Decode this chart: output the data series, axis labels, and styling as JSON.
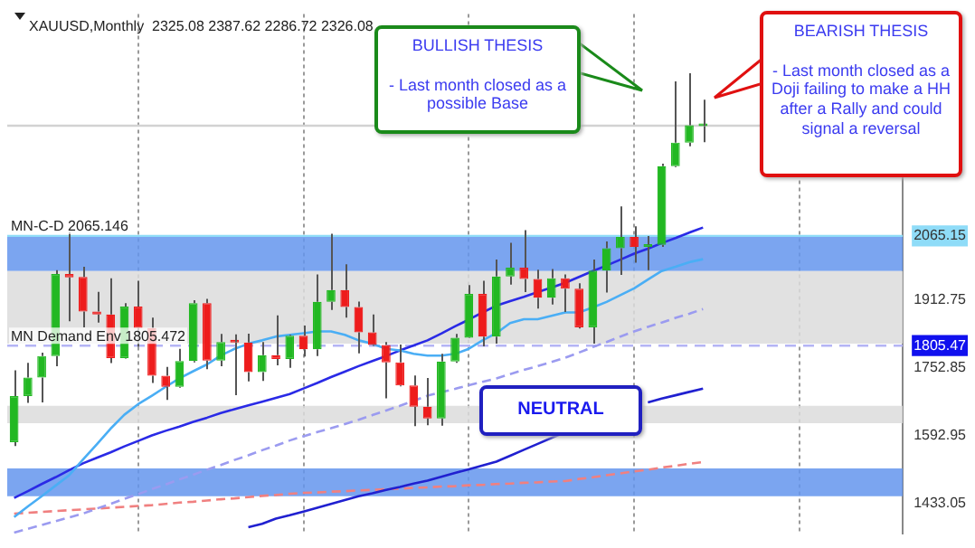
{
  "chart_data": {
    "type": "candlestick",
    "title": "XAUUSD,Monthly  2325.08 2387.62 2286.72 2326.08",
    "categories": [
      null,
      null,
      null,
      null,
      null,
      null,
      null,
      null,
      null,
      null,
      null,
      null,
      null,
      null,
      null,
      null,
      null,
      null,
      null,
      null,
      null,
      null,
      null,
      null,
      null,
      null,
      null,
      null,
      null,
      null,
      null,
      null,
      null,
      null,
      null,
      null,
      null,
      null,
      null,
      null,
      null,
      null,
      null,
      null,
      null,
      null,
      null,
      null,
      null,
      null,
      null,
      null,
      null,
      null,
      null,
      null,
      null,
      null,
      null,
      null,
      null,
      null,
      null,
      null,
      null
    ],
    "ohlc": [
      [
        1577,
        1747,
        1568,
        1686
      ],
      [
        1686,
        1765,
        1670,
        1730
      ],
      [
        1730,
        1789,
        1671,
        1781
      ],
      [
        1781,
        1984,
        1757,
        1975
      ],
      [
        1975,
        2075,
        1863,
        1967
      ],
      [
        1968,
        1992,
        1849,
        1886
      ],
      [
        1886,
        1933,
        1860,
        1879
      ],
      [
        1879,
        1965,
        1764,
        1776
      ],
      [
        1776,
        1906,
        1775,
        1898
      ],
      [
        1898,
        1959,
        1803,
        1847
      ],
      [
        1847,
        1872,
        1717,
        1734
      ],
      [
        1734,
        1755,
        1677,
        1708
      ],
      [
        1708,
        1798,
        1706,
        1769
      ],
      [
        1769,
        1913,
        1766,
        1906
      ],
      [
        1906,
        1916,
        1750,
        1770
      ],
      [
        1770,
        1833,
        1757,
        1814
      ],
      [
        1814,
        1832,
        1688,
        1813
      ],
      [
        1813,
        1834,
        1721,
        1743
      ],
      [
        1743,
        1814,
        1722,
        1783
      ],
      [
        1783,
        1877,
        1759,
        1774
      ],
      [
        1774,
        1831,
        1753,
        1829
      ],
      [
        1829,
        1853,
        1780,
        1797
      ],
      [
        1797,
        1974,
        1781,
        1909
      ],
      [
        1909,
        2070,
        1890,
        1937
      ],
      [
        1937,
        1998,
        1872,
        1897
      ],
      [
        1897,
        1910,
        1787,
        1837
      ],
      [
        1837,
        1879,
        1805,
        1807
      ],
      [
        1807,
        1814,
        1681,
        1766
      ],
      [
        1766,
        1808,
        1709,
        1711
      ],
      [
        1711,
        1735,
        1615,
        1661
      ],
      [
        1661,
        1729,
        1617,
        1633
      ],
      [
        1633,
        1786,
        1616,
        1768
      ],
      [
        1768,
        1833,
        1765,
        1824
      ],
      [
        1824,
        1949,
        1823,
        1928
      ],
      [
        1928,
        1959,
        1804,
        1827
      ],
      [
        1827,
        2009,
        1810,
        1969
      ],
      [
        1969,
        2049,
        1950,
        1990
      ],
      [
        1990,
        2079,
        1932,
        1963
      ],
      [
        1963,
        1985,
        1893,
        1919
      ],
      [
        1919,
        1987,
        1903,
        1965
      ],
      [
        1965,
        1974,
        1885,
        1940
      ],
      [
        1940,
        1953,
        1846,
        1849
      ],
      [
        1849,
        2009,
        1810,
        1983
      ],
      [
        1983,
        2052,
        1931,
        2036
      ],
      [
        2036,
        2135,
        1973,
        2063
      ],
      [
        2063,
        2088,
        2002,
        2039
      ],
      [
        2039,
        2065,
        1984,
        2044
      ],
      [
        2044,
        2236,
        2039,
        2230
      ],
      [
        2230,
        2431,
        2228,
        2286
      ],
      [
        2286,
        2450,
        2277,
        2327
      ],
      [
        2325.08,
        2387.62,
        2286.72,
        2326.08
      ],
      null,
      null,
      null,
      null,
      null,
      null,
      null,
      null,
      null,
      null,
      null,
      null,
      null,
      null
    ],
    "colors": [
      "#22b822",
      "#22b822",
      "#22b822",
      "#22b822",
      "#ee1c1c",
      "#ee1c1c",
      "#ee1c1c",
      "#ee1c1c",
      "#22b822",
      "#ee1c1c",
      "#ee1c1c",
      "#ee1c1c",
      "#22b822",
      "#22b822",
      "#ee1c1c",
      "#22b822",
      "#ee1c1c",
      "#ee1c1c",
      "#22b822",
      "#ee1c1c",
      "#22b822",
      "#ee1c1c",
      "#22b822",
      "#22b822",
      "#ee1c1c",
      "#ee1c1c",
      "#ee1c1c",
      "#ee1c1c",
      "#ee1c1c",
      "#ee1c1c",
      "#ee1c1c",
      "#22b822",
      "#22b822",
      "#22b822",
      "#ee1c1c",
      "#22b822",
      "#22b822",
      "#ee1c1c",
      "#ee1c1c",
      "#22b822",
      "#ee1c1c",
      "#ee1c1c",
      "#22b822",
      "#22b822",
      "#22b822",
      "#ee1c1c",
      "#22b822",
      "#22b822",
      "#22b822",
      "#22b822",
      "#22b822",
      null,
      null,
      null,
      null,
      null,
      null,
      null,
      null,
      null,
      null,
      null,
      null,
      null,
      null
    ],
    "series": [
      {
        "type": "line",
        "color": "#4aaef5",
        "values": [
          1400,
          1425,
          1449,
          1474,
          1499,
          1536,
          1572,
          1609,
          1642,
          1667,
          1687,
          1708,
          1728,
          1745,
          1761,
          1782,
          1798,
          1810,
          1818,
          1827,
          1831,
          1835,
          1839,
          1839,
          1831,
          1818,
          1810,
          1798,
          1794,
          1786,
          1782,
          1782,
          1786,
          1798,
          1818,
          1835,
          1859,
          1868,
          1868,
          1876,
          1884,
          1884,
          1896,
          1909,
          1925,
          1941,
          1962,
          1982,
          1992,
          2003,
          2010,
          null,
          null,
          null,
          null,
          null,
          null,
          null,
          null,
          null,
          null,
          null,
          null,
          null,
          null
        ]
      },
      {
        "type": "line",
        "color": "#2a2ae6",
        "values": [
          1445,
          1461,
          1478,
          1494,
          1511,
          1527,
          1540,
          1553,
          1567,
          1580,
          1593,
          1604,
          1614,
          1625,
          1635,
          1646,
          1655,
          1664,
          1673,
          1682,
          1691,
          1704,
          1717,
          1731,
          1744,
          1757,
          1769,
          1781,
          1794,
          1806,
          1818,
          1834,
          1851,
          1867,
          1884,
          1900,
          1911,
          1921,
          1932,
          1943,
          1954,
          1968,
          1982,
          1995,
          2009,
          2023,
          2035,
          2048,
          2060,
          2073,
          2085,
          null,
          null,
          null,
          null,
          null,
          null,
          null,
          null,
          null,
          null,
          null,
          null,
          null,
          null
        ]
      },
      {
        "type": "line",
        "color": "#2020d0",
        "values": [
          null,
          null,
          null,
          null,
          null,
          null,
          null,
          null,
          null,
          null,
          null,
          null,
          null,
          null,
          null,
          null,
          null,
          1376,
          1384,
          1396,
          1404,
          1413,
          1422,
          1431,
          1440,
          1449,
          1456,
          1464,
          1471,
          1479,
          1486,
          1495,
          1504,
          1513,
          1522,
          1531,
          1545,
          1559,
          1573,
          1587,
          1601,
          null,
          null,
          null,
          null,
          null,
          1671,
          1680,
          1688,
          1696,
          1704,
          null,
          null,
          null,
          null,
          null,
          null,
          null,
          null,
          null,
          null,
          null,
          null,
          null,
          null
        ]
      },
      {
        "type": "line",
        "color": "#9b9bf0",
        "line_style": "dashed",
        "values": [
          1363,
          1372,
          1381,
          1390,
          1399,
          1408,
          1420,
          1431,
          1443,
          1454,
          1466,
          1477,
          1489,
          1500,
          1512,
          1523,
          1535,
          1546,
          1558,
          1569,
          1581,
          1591,
          1601,
          1610,
          1620,
          1630,
          1641,
          1652,
          1663,
          1675,
          1687,
          1695,
          1703,
          1712,
          1720,
          1728,
          1738,
          1748,
          1757,
          1767,
          1777,
          1789,
          1802,
          1814,
          1827,
          1839,
          1850,
          1860,
          1871,
          1881,
          1892,
          null,
          null,
          null,
          null,
          null,
          null,
          null,
          null,
          null,
          null,
          null,
          null,
          null,
          null
        ]
      },
      {
        "type": "line",
        "color": "#f08080",
        "line_style": "dashed",
        "values": [
          1408,
          1410,
          1412,
          1414,
          1416,
          1418,
          1420,
          1422,
          1424,
          1426,
          1428,
          1431,
          1434,
          1436,
          1439,
          1442,
          1444,
          1447,
          1450,
          1452,
          1455,
          1457,
          1458,
          1460,
          1461,
          1463,
          1464,
          1466,
          1467,
          1469,
          1470,
          1472,
          1473,
          1475,
          1476,
          1478,
          1479,
          1481,
          1482,
          1484,
          1485,
          1490,
          1494,
          1499,
          1503,
          1508,
          1512,
          1517,
          1521,
          1526,
          1530,
          null,
          null,
          null,
          null,
          null,
          null,
          null,
          null,
          null,
          null,
          null,
          null,
          null,
          null
        ]
      }
    ],
    "ylim": [
      1360,
      2590
    ],
    "yticks": [
      1433.05,
      1592.95,
      1752.85,
      1805.47,
      1912.75,
      2065.15
    ],
    "tick_labels": "y",
    "grid": "x",
    "legend": false,
    "ref_lines": [
      {
        "axis": "y",
        "value": 2065.146,
        "label": "MN-C-D 2065.146",
        "color": "#8fdcf8"
      },
      {
        "axis": "y",
        "value": 1805.472,
        "label": "MN Demand Env 1805.472",
        "color": "#b4b4f5",
        "line_style": "dashed"
      },
      {
        "axis": "y",
        "value": 2326.08,
        "label": null,
        "color": "#d2d2d2"
      }
    ],
    "bands": [
      {
        "axis": "y",
        "from": 1449,
        "to": 1515,
        "color": "#6495ed"
      },
      {
        "axis": "y",
        "from": 1982,
        "to": 2064,
        "color": "#6495ed"
      },
      {
        "axis": "y",
        "from": 1810,
        "to": 1982,
        "color": "#dcdcdc"
      },
      {
        "axis": "y",
        "from": 1622,
        "to": 1663,
        "color": "#dcdcdc"
      }
    ],
    "annotations": [
      "BULLISH THESIS\n\n- Last month closed as a possible Base",
      "BEARISH THESIS\n\n- Last month closed as a Doji failing to make a HH after a Rally and could signal a reversal",
      "NEUTRAL"
    ]
  }
}
